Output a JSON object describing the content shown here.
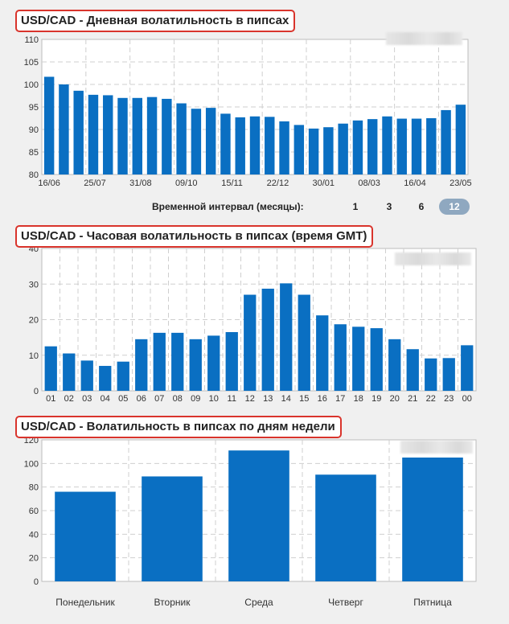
{
  "colors": {
    "bar": "#0a6fc2",
    "grid": "#cfcfcf",
    "title_border": "#d9342c",
    "active_interval": "#8fa8c0"
  },
  "daily": {
    "title": "USD/CAD - Дневная волатильность в пипсах",
    "interval_label": "Временной интервал (месяцы):",
    "interval_options": [
      "1",
      "3",
      "6",
      "12"
    ],
    "interval_selected": "12"
  },
  "hourly": {
    "title": "USD/CAD - Часовая волатильность в пипсах (время GMT)"
  },
  "weekday": {
    "title": "USD/CAD - Волатильность в пипсах по дням недели"
  },
  "chart_data": [
    {
      "type": "bar",
      "title": "USD/CAD - Дневная волатильность в пипсах",
      "ylim": [
        80,
        110
      ],
      "yticks": [
        80,
        85,
        90,
        95,
        100,
        105,
        110
      ],
      "xtick_labels": [
        "16/06",
        "25/07",
        "31/08",
        "09/10",
        "15/11",
        "22/12",
        "30/01",
        "08/03",
        "16/04",
        "23/05"
      ],
      "values": [
        101.7,
        100,
        98.6,
        97.7,
        97.6,
        97,
        97,
        97.2,
        96.8,
        95.8,
        94.6,
        94.8,
        93.5,
        92.7,
        92.9,
        92.8,
        91.8,
        91,
        90.2,
        90.5,
        91.3,
        92,
        92.3,
        92.9,
        92.4,
        92.4,
        92.5,
        94.3,
        95.5
      ],
      "grid": true
    },
    {
      "type": "bar",
      "title": "USD/CAD - Часовая волатильность в пипсах (время GMT)",
      "ylim": [
        0,
        40
      ],
      "yticks": [
        0,
        10,
        20,
        30,
        40
      ],
      "categories": [
        "01",
        "02",
        "03",
        "04",
        "05",
        "06",
        "07",
        "08",
        "09",
        "10",
        "11",
        "12",
        "13",
        "14",
        "15",
        "16",
        "17",
        "18",
        "19",
        "20",
        "21",
        "22",
        "23",
        "00"
      ],
      "values": [
        12.5,
        10.5,
        8.5,
        7,
        8.2,
        14.5,
        16.3,
        16.3,
        14.5,
        15.5,
        16.5,
        27,
        28.7,
        30.2,
        27,
        21.2,
        18.7,
        18,
        17.6,
        14.5,
        11.7,
        9.1,
        9.2,
        12.8
      ],
      "grid": true
    },
    {
      "type": "bar",
      "title": "USD/CAD - Волатильность в пипсах по дням недели",
      "ylim": [
        0,
        120
      ],
      "yticks": [
        0,
        20,
        40,
        60,
        80,
        100,
        120
      ],
      "categories": [
        "Понедельник",
        "Вторник",
        "Среда",
        "Четверг",
        "Пятница"
      ],
      "values": [
        76,
        89,
        111,
        90.5,
        105
      ],
      "grid": true
    }
  ]
}
